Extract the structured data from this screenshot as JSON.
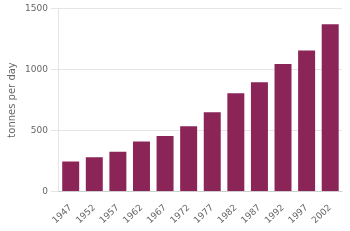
{
  "chart_data": {
    "type": "bar",
    "categories": [
      "1947",
      "1952",
      "1957",
      "1962",
      "1967",
      "1972",
      "1977",
      "1982",
      "1987",
      "1992",
      "1997",
      "2002"
    ],
    "values": [
      245,
      280,
      325,
      410,
      455,
      535,
      650,
      805,
      895,
      1045,
      1155,
      1370
    ],
    "color": "#8B2558",
    "ylabel": "tonnes per day",
    "ylim": [
      0,
      1500
    ],
    "yticks": [
      0,
      500,
      1000,
      1500
    ],
    "grid": true
  }
}
